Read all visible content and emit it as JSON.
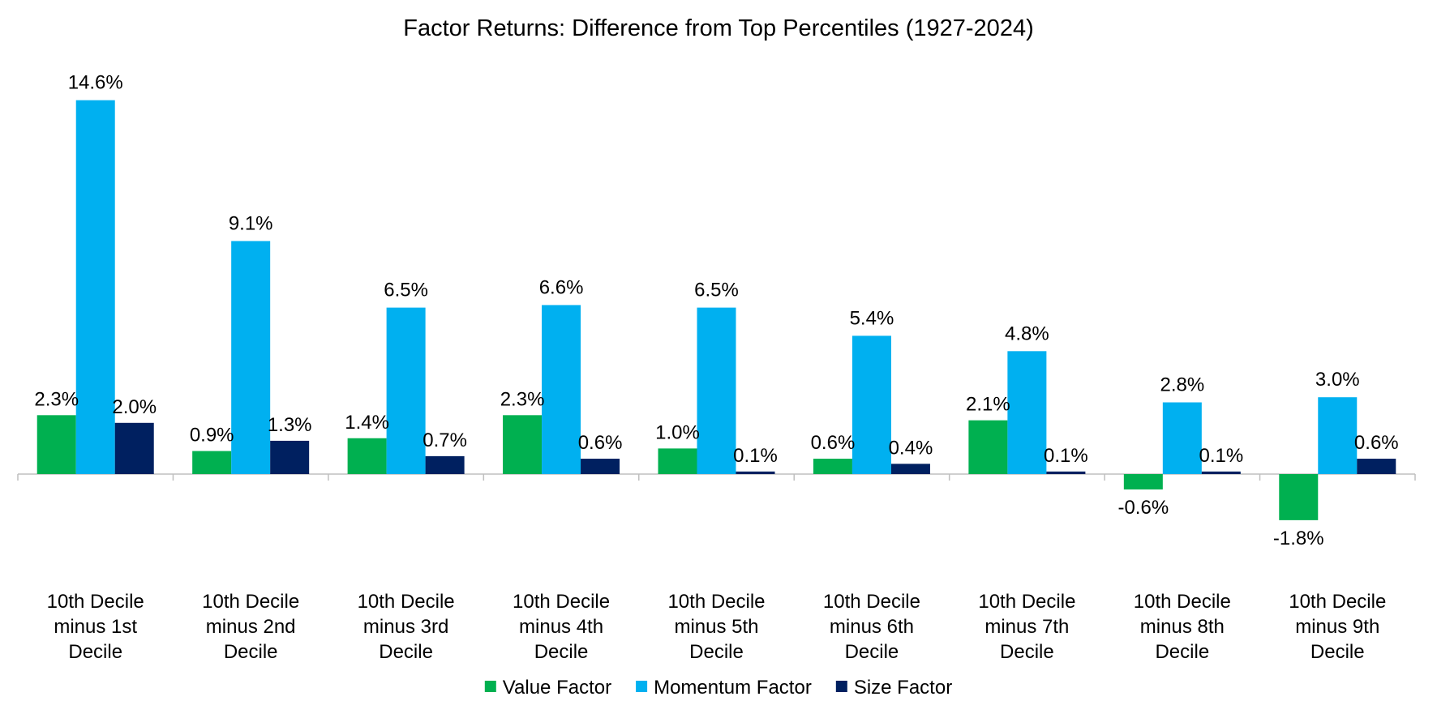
{
  "chart_data": {
    "type": "bar",
    "title": "Factor Returns: Difference from Top Percentiles (1927-2024)",
    "xlabel": "",
    "ylabel": "",
    "categories": [
      [
        "10th Decile",
        "minus 1st",
        "Decile"
      ],
      [
        "10th Decile",
        "minus 2nd",
        "Decile"
      ],
      [
        "10th Decile",
        "minus 3rd",
        "Decile"
      ],
      [
        "10th Decile",
        "minus 4th",
        "Decile"
      ],
      [
        "10th Decile",
        "minus 5th",
        "Decile"
      ],
      [
        "10th Decile",
        "minus 6th",
        "Decile"
      ],
      [
        "10th Decile",
        "minus 7th",
        "Decile"
      ],
      [
        "10th Decile",
        "minus 8th",
        "Decile"
      ],
      [
        "10th Decile",
        "minus 9th",
        "Decile"
      ]
    ],
    "series": [
      {
        "name": "Value Factor",
        "color": "#00B050",
        "values": [
          2.3,
          0.9,
          1.4,
          2.3,
          1.0,
          0.6,
          2.1,
          -0.6,
          -1.8
        ],
        "labels": [
          "2.3%",
          "0.9%",
          "1.4%",
          "2.3%",
          "1.0%",
          "0.6%",
          "2.1%",
          "-0.6%",
          "-1.8%"
        ]
      },
      {
        "name": "Momentum Factor",
        "color": "#00B0F0",
        "values": [
          14.6,
          9.1,
          6.5,
          6.6,
          6.5,
          5.4,
          4.8,
          2.8,
          3.0
        ],
        "labels": [
          "14.6%",
          "9.1%",
          "6.5%",
          "6.6%",
          "6.5%",
          "5.4%",
          "4.8%",
          "2.8%",
          "3.0%"
        ]
      },
      {
        "name": "Size Factor",
        "color": "#002060",
        "values": [
          2.0,
          1.3,
          0.7,
          0.6,
          0.1,
          0.4,
          0.1,
          0.1,
          0.6
        ],
        "labels": [
          "2.0%",
          "1.3%",
          "0.7%",
          "0.6%",
          "0.1%",
          "0.4%",
          "0.1%",
          "0.1%",
          "0.6%"
        ]
      }
    ],
    "ylim": [
      -3.5,
      15.5
    ],
    "legend_position": "bottom",
    "grid": false
  }
}
